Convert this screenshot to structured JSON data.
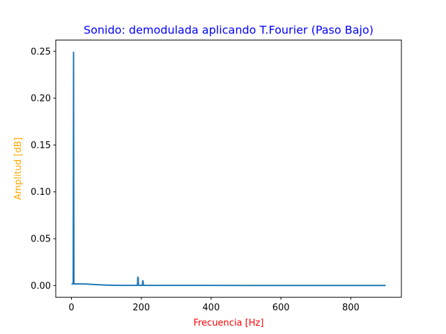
{
  "chart_data": {
    "type": "line",
    "title": "Sonido: demodulada aplicando T.Fourier (Paso Bajo)",
    "xlabel": "Frecuencia [Hz]",
    "ylabel": "Amplitud [dB]",
    "xlim": [
      -45,
      945
    ],
    "ylim": [
      -0.0125,
      0.262
    ],
    "xticks": [
      0,
      200,
      400,
      600,
      800
    ],
    "xtick_labels": [
      "0",
      "200",
      "400",
      "600",
      "800"
    ],
    "yticks": [
      0.0,
      0.05,
      0.1,
      0.15,
      0.2,
      0.25
    ],
    "ytick_labels": [
      "0.00",
      "0.05",
      "0.10",
      "0.15",
      "0.20",
      "0.25"
    ],
    "grid": false,
    "series": [
      {
        "name": "",
        "x": [
          0,
          4,
          5,
          6,
          7,
          8,
          10,
          20,
          40,
          60,
          80,
          100,
          120,
          140,
          160,
          180,
          189,
          190,
          191,
          192,
          193,
          195,
          203,
          204,
          205,
          206,
          207,
          210,
          250,
          300,
          400,
          500,
          600,
          700,
          800,
          900
        ],
        "y": [
          0.0015,
          0.0018,
          0.0018,
          0.249,
          0.002,
          0.0018,
          0.0018,
          0.0018,
          0.0017,
          0.0012,
          0.0008,
          0.0005,
          0.0003,
          0.0002,
          0.0002,
          0.0002,
          0.0002,
          0.009,
          0.0085,
          0.0002,
          0.0002,
          0.0002,
          0.0002,
          0.005,
          0.005,
          0.0002,
          0.0002,
          0.0002,
          0.0002,
          0.0002,
          0.0002,
          0.0001,
          0.0001,
          0.0001,
          0.0001,
          0.0001
        ]
      }
    ]
  },
  "colors": {
    "line": "#1f77b4",
    "title": "#0000ff",
    "xlabel": "#ff0000",
    "ylabel": "#ffa500"
  }
}
